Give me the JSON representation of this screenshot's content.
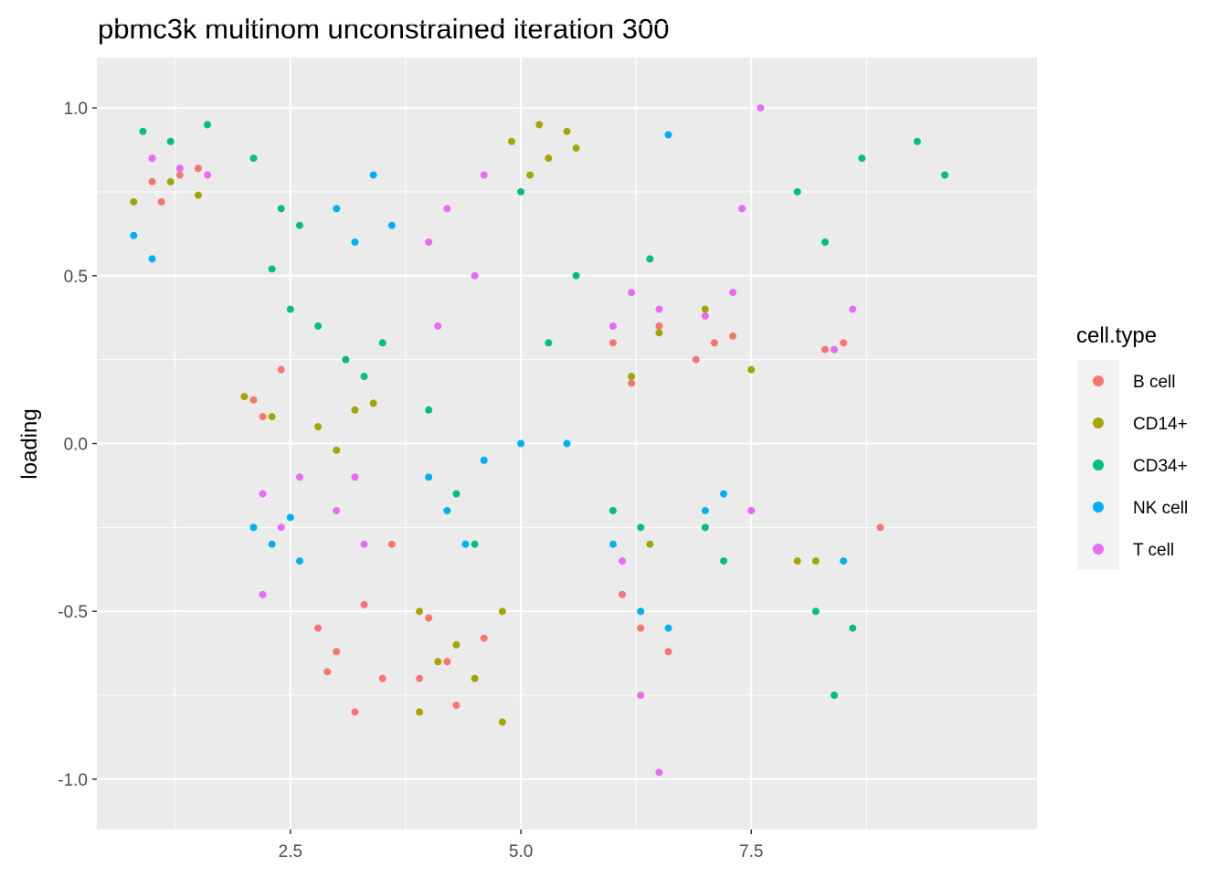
{
  "chart_data": {
    "type": "scatter",
    "title": "pbmc3k multinom unconstrained iteration 300",
    "xlabel": "",
    "ylabel": "loading",
    "xlim": [
      0.4,
      10.6
    ],
    "ylim": [
      -1.15,
      1.15
    ],
    "x_ticks": [
      2.5,
      5.0,
      7.5
    ],
    "x_tick_labels": [
      "2.5",
      "5.0",
      "7.5"
    ],
    "y_ticks": [
      -1.0,
      -0.5,
      0.0,
      0.5,
      1.0
    ],
    "y_tick_labels": [
      "-1.0",
      "-0.5",
      "0.0",
      "0.5",
      "1.0"
    ],
    "grid": true,
    "legend": {
      "title": "cell.type",
      "position": "right",
      "entries": [
        {
          "name": "B cell",
          "color": "#F8766D"
        },
        {
          "name": "CD14+",
          "color": "#A3A500"
        },
        {
          "name": "CD34+",
          "color": "#00BF7D"
        },
        {
          "name": "NK cell",
          "color": "#00B0F6"
        },
        {
          "name": "T cell",
          "color": "#E76BF3"
        }
      ]
    },
    "series": [
      {
        "name": "B cell",
        "color": "#F8766D",
        "points": [
          [
            1.0,
            0.78
          ],
          [
            1.1,
            0.72
          ],
          [
            1.3,
            0.8
          ],
          [
            1.5,
            0.82
          ],
          [
            2.1,
            0.13
          ],
          [
            2.2,
            0.08
          ],
          [
            2.4,
            0.22
          ],
          [
            2.8,
            -0.55
          ],
          [
            3.0,
            -0.62
          ],
          [
            3.3,
            -0.48
          ],
          [
            3.5,
            -0.7
          ],
          [
            3.2,
            -0.8
          ],
          [
            2.9,
            -0.68
          ],
          [
            3.6,
            -0.3
          ],
          [
            3.9,
            -0.7
          ],
          [
            4.2,
            -0.65
          ],
          [
            4.6,
            -0.58
          ],
          [
            4.3,
            -0.78
          ],
          [
            4.0,
            -0.52
          ],
          [
            6.0,
            0.3
          ],
          [
            6.2,
            0.18
          ],
          [
            6.5,
            0.35
          ],
          [
            6.1,
            -0.45
          ],
          [
            6.6,
            -0.62
          ],
          [
            6.3,
            -0.55
          ],
          [
            6.9,
            0.25
          ],
          [
            7.1,
            0.3
          ],
          [
            7.3,
            0.32
          ],
          [
            8.3,
            0.28
          ],
          [
            8.5,
            0.3
          ],
          [
            8.9,
            -0.25
          ]
        ]
      },
      {
        "name": "CD14+",
        "color": "#A3A500",
        "points": [
          [
            0.8,
            0.72
          ],
          [
            1.0,
            0.85
          ],
          [
            1.2,
            0.78
          ],
          [
            1.5,
            0.74
          ],
          [
            2.0,
            0.14
          ],
          [
            2.3,
            0.08
          ],
          [
            2.8,
            0.05
          ],
          [
            3.0,
            -0.02
          ],
          [
            3.2,
            0.1
          ],
          [
            3.4,
            0.12
          ],
          [
            3.9,
            -0.5
          ],
          [
            4.1,
            -0.65
          ],
          [
            4.3,
            -0.6
          ],
          [
            4.5,
            -0.7
          ],
          [
            4.8,
            -0.5
          ],
          [
            3.9,
            -0.8
          ],
          [
            4.8,
            -0.83
          ],
          [
            4.9,
            0.9
          ],
          [
            5.2,
            0.95
          ],
          [
            5.5,
            0.93
          ],
          [
            5.3,
            0.85
          ],
          [
            5.1,
            0.8
          ],
          [
            5.6,
            0.88
          ],
          [
            6.2,
            0.2
          ],
          [
            6.5,
            0.33
          ],
          [
            6.4,
            -0.3
          ],
          [
            7.0,
            0.4
          ],
          [
            7.5,
            0.22
          ],
          [
            8.0,
            -0.35
          ],
          [
            8.2,
            -0.35
          ]
        ]
      },
      {
        "name": "CD34+",
        "color": "#00BF7D",
        "points": [
          [
            0.9,
            0.93
          ],
          [
            1.2,
            0.9
          ],
          [
            1.6,
            0.95
          ],
          [
            2.1,
            0.85
          ],
          [
            2.4,
            0.7
          ],
          [
            2.6,
            0.65
          ],
          [
            2.3,
            0.52
          ],
          [
            2.5,
            0.4
          ],
          [
            2.8,
            0.35
          ],
          [
            3.1,
            0.25
          ],
          [
            3.3,
            0.2
          ],
          [
            3.5,
            0.3
          ],
          [
            4.0,
            0.1
          ],
          [
            4.3,
            -0.15
          ],
          [
            4.5,
            -0.3
          ],
          [
            5.0,
            0.75
          ],
          [
            5.3,
            0.3
          ],
          [
            5.6,
            0.5
          ],
          [
            6.0,
            -0.2
          ],
          [
            6.3,
            -0.25
          ],
          [
            6.4,
            0.55
          ],
          [
            7.0,
            -0.25
          ],
          [
            7.2,
            -0.35
          ],
          [
            8.0,
            0.75
          ],
          [
            8.3,
            0.6
          ],
          [
            8.7,
            0.85
          ],
          [
            9.3,
            0.9
          ],
          [
            9.6,
            0.8
          ],
          [
            8.2,
            -0.5
          ],
          [
            8.6,
            -0.55
          ],
          [
            8.4,
            -0.75
          ]
        ]
      },
      {
        "name": "NK cell",
        "color": "#00B0F6",
        "points": [
          [
            0.8,
            0.62
          ],
          [
            1.0,
            0.55
          ],
          [
            2.1,
            -0.25
          ],
          [
            2.3,
            -0.3
          ],
          [
            2.5,
            -0.22
          ],
          [
            2.6,
            -0.35
          ],
          [
            3.0,
            0.7
          ],
          [
            3.2,
            0.6
          ],
          [
            3.4,
            0.8
          ],
          [
            3.6,
            0.65
          ],
          [
            4.0,
            -0.1
          ],
          [
            4.2,
            -0.2
          ],
          [
            4.4,
            -0.3
          ],
          [
            4.6,
            -0.05
          ],
          [
            5.0,
            0.0
          ],
          [
            5.5,
            0.0
          ],
          [
            6.0,
            -0.3
          ],
          [
            6.3,
            -0.5
          ],
          [
            6.6,
            -0.55
          ],
          [
            7.0,
            -0.2
          ],
          [
            7.2,
            -0.15
          ],
          [
            8.5,
            -0.35
          ],
          [
            6.6,
            0.92
          ]
        ]
      },
      {
        "name": "T cell",
        "color": "#E76BF3",
        "points": [
          [
            1.0,
            0.85
          ],
          [
            1.3,
            0.82
          ],
          [
            1.6,
            0.8
          ],
          [
            2.2,
            -0.15
          ],
          [
            2.4,
            -0.25
          ],
          [
            2.6,
            -0.1
          ],
          [
            2.2,
            -0.45
          ],
          [
            3.0,
            -0.2
          ],
          [
            3.3,
            -0.3
          ],
          [
            3.2,
            -0.1
          ],
          [
            4.0,
            0.6
          ],
          [
            4.2,
            0.7
          ],
          [
            4.5,
            0.5
          ],
          [
            4.6,
            0.8
          ],
          [
            4.1,
            0.35
          ],
          [
            6.0,
            0.35
          ],
          [
            6.2,
            0.45
          ],
          [
            6.5,
            0.4
          ],
          [
            6.1,
            -0.35
          ],
          [
            6.3,
            -0.75
          ],
          [
            6.5,
            -0.98
          ],
          [
            7.0,
            0.38
          ],
          [
            7.3,
            0.45
          ],
          [
            7.4,
            0.7
          ],
          [
            7.5,
            -0.2
          ],
          [
            8.4,
            0.28
          ],
          [
            8.6,
            0.4
          ],
          [
            7.6,
            1.0
          ]
        ]
      }
    ]
  }
}
